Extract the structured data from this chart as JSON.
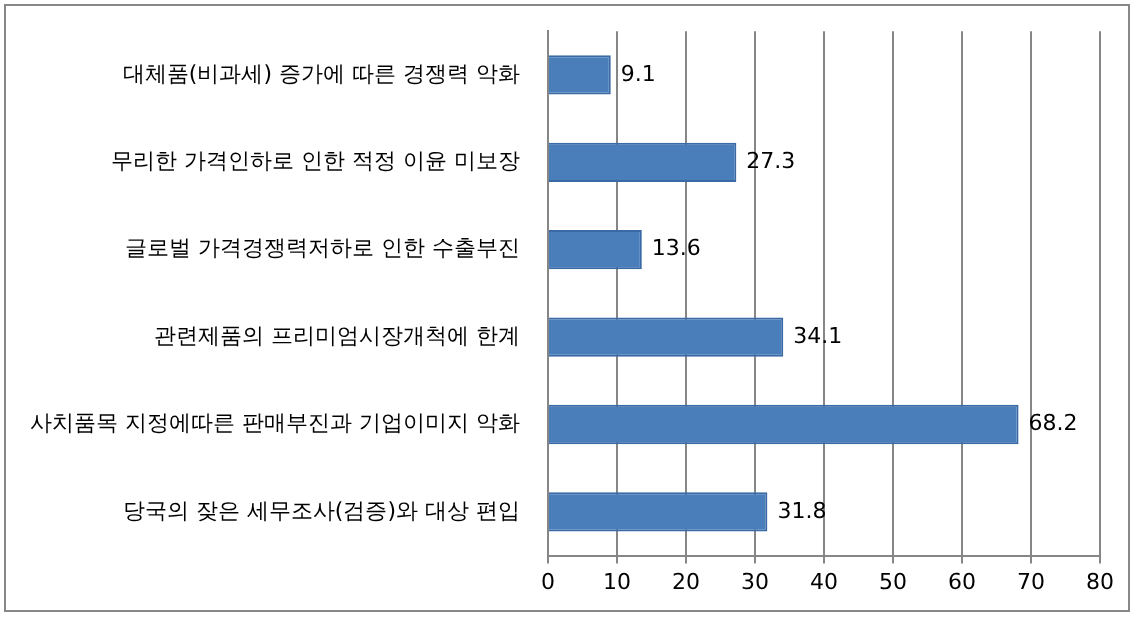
{
  "chart_data": {
    "type": "bar",
    "orientation": "horizontal",
    "categories": [
      "대체품(비과세) 증가에 따른 경쟁력 악화",
      "무리한 가격인하로 인한 적정 이윤 미보장",
      "글로벌 가격경쟁력저하로 인한 수출부진",
      "관련제품의 프리미엄시장개척에 한계",
      "사치품목 지정에따른 판매부진과 기업이미지 악화",
      "당국의 잦은 세무조사(검증)와 대상 편입"
    ],
    "values": [
      9.1,
      27.3,
      13.6,
      34.1,
      68.2,
      31.8
    ],
    "color": "#4a7ebb",
    "xlim": [
      0,
      80
    ],
    "xticks": [
      0,
      10,
      20,
      30,
      40,
      50,
      60,
      70,
      80
    ],
    "grid": "x",
    "data_labels": true
  }
}
